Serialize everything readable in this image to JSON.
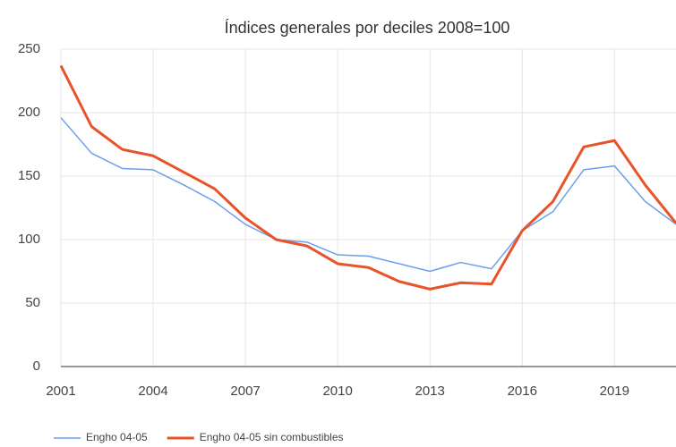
{
  "chart_data": {
    "type": "line",
    "title": "Índices generales por deciles 2008=100",
    "x": [
      2001,
      2002,
      2003,
      2004,
      2005,
      2006,
      2007,
      2008,
      2009,
      2010,
      2011,
      2012,
      2013,
      2014,
      2015,
      2016,
      2017,
      2018,
      2019,
      2020,
      2021
    ],
    "series": [
      {
        "name": "Engho 04-05",
        "color": "#6d9eeb",
        "values": [
          196,
          168,
          156,
          155,
          143,
          130,
          112,
          100,
          98,
          88,
          87,
          81,
          75,
          82,
          77,
          107,
          122,
          155,
          158,
          130,
          112
        ]
      },
      {
        "name": "Engho 04-05 sin combustibles",
        "color": "#e8532a",
        "values": [
          237,
          189,
          171,
          166,
          153,
          140,
          117,
          100,
          95,
          81,
          78,
          67,
          61,
          66,
          65,
          107,
          130,
          173,
          178,
          143,
          113
        ]
      }
    ],
    "xlim": [
      2001,
      2021
    ],
    "xticks": [
      2001,
      2004,
      2007,
      2010,
      2013,
      2016,
      2019
    ],
    "ylim": [
      0,
      250
    ],
    "yticks": [
      0,
      50,
      100,
      150,
      200,
      250
    ],
    "grid": true,
    "legend": "bottom"
  }
}
